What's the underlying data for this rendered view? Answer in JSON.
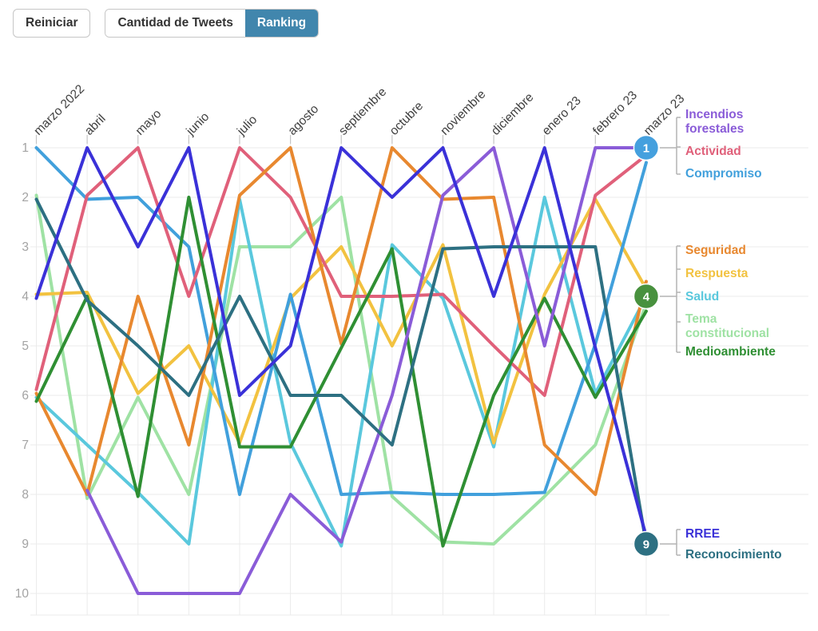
{
  "toolbar": {
    "reset_label": "Reiniciar",
    "tweets_label": "Cantidad de Tweets",
    "ranking_label": "Ranking",
    "active_color": "#4186ad"
  },
  "chart_data": {
    "type": "line",
    "subtype": "bump-ranking",
    "x": [
      "marzo 2022",
      "abril",
      "mayo",
      "junio",
      "julio",
      "agosto",
      "septiembre",
      "octubre",
      "noviembre",
      "diciembre",
      "enero 23",
      "febrero 23",
      "marzo 23"
    ],
    "ylabel": "",
    "xlabel": "",
    "yticks": [
      1,
      2,
      3,
      4,
      5,
      6,
      7,
      8,
      9,
      10
    ],
    "y_inverted": true,
    "grid": true,
    "series": [
      {
        "name": "Incendios forestales",
        "label_lines": [
          "Incendios",
          "forestales"
        ],
        "color": "#8a5cd8",
        "values": [
          null,
          8,
          10,
          10,
          10,
          8,
          9,
          6,
          2,
          1,
          5,
          1,
          1
        ]
      },
      {
        "name": "Actividad",
        "label_lines": [
          "Actividad"
        ],
        "color": "#e0607a",
        "values": [
          6,
          2,
          1,
          4,
          1,
          2,
          4,
          4,
          4,
          5,
          6,
          2,
          1
        ]
      },
      {
        "name": "Compromiso",
        "label_lines": [
          "Compromiso"
        ],
        "color": "#41a0dc",
        "values": [
          1,
          2,
          2,
          3,
          8,
          4,
          8,
          8,
          8,
          8,
          8,
          5,
          1
        ]
      },
      {
        "name": "Seguridad",
        "label_lines": [
          "Seguridad"
        ],
        "color": "#e8882f",
        "values": [
          6,
          8,
          4,
          7,
          2,
          1,
          5,
          1,
          2,
          2,
          7,
          8,
          4
        ]
      },
      {
        "name": "Respuesta",
        "label_lines": [
          "Respuesta"
        ],
        "color": "#f2c240",
        "values": [
          4,
          4,
          6,
          5,
          7,
          4,
          3,
          5,
          3,
          7,
          4,
          2,
          4
        ]
      },
      {
        "name": "Salud",
        "label_lines": [
          "Salud"
        ],
        "color": "#5ac8dd",
        "values": [
          6,
          7,
          8,
          9,
          2,
          7,
          9,
          3,
          4,
          7,
          2,
          6,
          4
        ]
      },
      {
        "name": "Tema constitucional",
        "label_lines": [
          "Tema",
          "constitucional"
        ],
        "color": "#9fe2a4",
        "values": [
          2,
          8,
          6,
          8,
          3,
          3,
          2,
          8,
          9,
          9,
          8,
          7,
          4
        ]
      },
      {
        "name": "Medioambiente",
        "label_lines": [
          "Medioambiente"
        ],
        "color": "#2f8f33",
        "values": [
          6,
          4,
          8,
          2,
          7,
          7,
          5,
          3,
          9,
          6,
          4,
          6,
          4
        ]
      },
      {
        "name": "RREE",
        "label_lines": [
          "RREE"
        ],
        "color": "#3a31d8",
        "values": [
          4,
          1,
          3,
          1,
          6,
          5,
          1,
          2,
          1,
          4,
          1,
          5,
          9
        ]
      },
      {
        "name": "Reconocimiento",
        "label_lines": [
          "Reconocimiento"
        ],
        "color": "#2d7082",
        "values": [
          2,
          4,
          5,
          6,
          4,
          6,
          6,
          7,
          3,
          3,
          3,
          3,
          9
        ]
      }
    ],
    "endpoint_groups": [
      {
        "badge": "1",
        "badge_color": "#45a0de",
        "rank": 1,
        "items": [
          "Incendios forestales",
          "Actividad",
          "Compromiso"
        ]
      },
      {
        "badge": "4",
        "badge_color": "#48913e",
        "rank": 4,
        "items": [
          "Seguridad",
          "Respuesta",
          "Salud",
          "Tema constitucional",
          "Medioambiente"
        ]
      },
      {
        "badge": "9",
        "badge_color": "#2d7082",
        "rank": 9,
        "items": [
          "RREE",
          "Reconocimiento"
        ]
      }
    ]
  }
}
